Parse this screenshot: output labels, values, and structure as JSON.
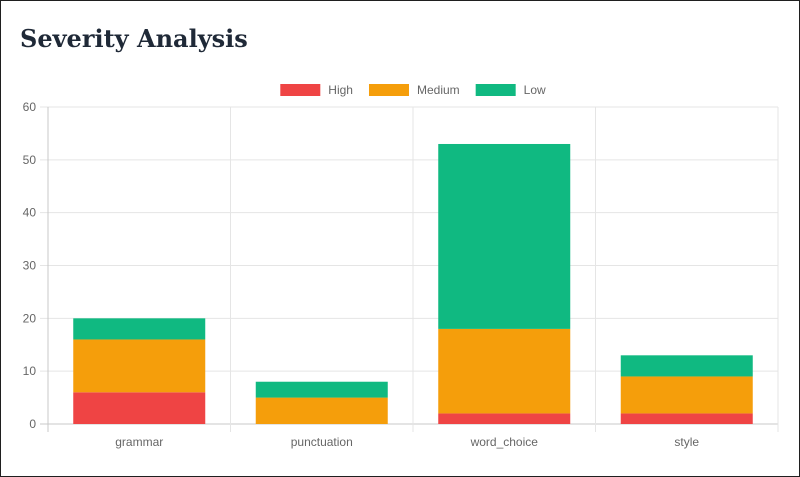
{
  "header": {
    "title": "Severity Analysis"
  },
  "chart_data": {
    "type": "bar",
    "stacked": true,
    "categories": [
      "grammar",
      "punctuation",
      "word_choice",
      "style"
    ],
    "series": [
      {
        "name": "High",
        "color": "#ef4444",
        "values": [
          6,
          0,
          2,
          2
        ]
      },
      {
        "name": "Medium",
        "color": "#f59e0b",
        "values": [
          10,
          5,
          16,
          7
        ]
      },
      {
        "name": "Low",
        "color": "#10b981",
        "values": [
          4,
          3,
          35,
          4
        ]
      }
    ],
    "ylim": [
      0,
      60
    ],
    "yticks": [
      0,
      10,
      20,
      30,
      40,
      50,
      60
    ],
    "grid": true,
    "legend_position": "top-center"
  }
}
